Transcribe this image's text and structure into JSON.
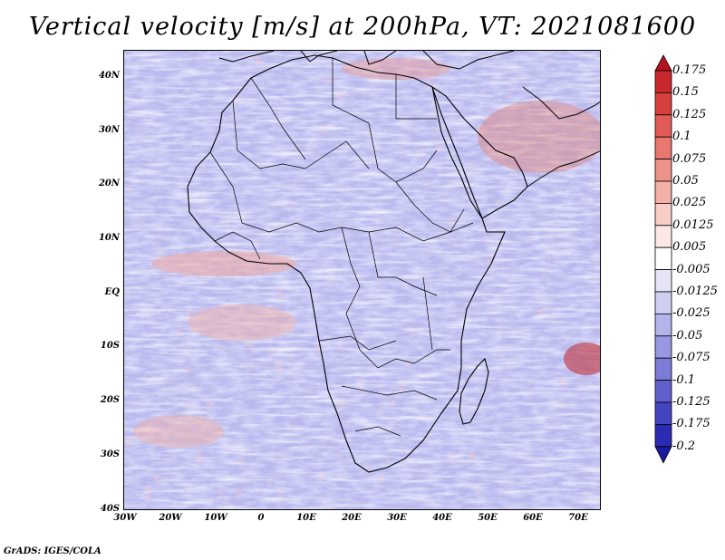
{
  "title": "Vertical velocity [m/s] at 200hPa, VT: 2021081600",
  "credit": "GrADS: IGES/COLA",
  "lat_labels": [
    "40N",
    "30N",
    "20N",
    "10N",
    "EQ",
    "10S",
    "20S",
    "30S",
    "40S"
  ],
  "lon_labels": [
    "30W",
    "20W",
    "10W",
    "0",
    "10E",
    "20E",
    "30E",
    "40E",
    "50E",
    "60E",
    "70E"
  ],
  "colorbar": {
    "labels": [
      "0.175",
      "0.15",
      "0.125",
      "0.1",
      "0.075",
      "0.05",
      "0.025",
      "0.0125",
      "0.005",
      "-0.005",
      "-0.0125",
      "-0.025",
      "-0.05",
      "-0.075",
      "-0.1",
      "-0.125",
      "-0.175",
      "-0.2"
    ],
    "colors": [
      "#b4141e",
      "#c8282d",
      "#d7413c",
      "#e15a55",
      "#e8776f",
      "#ee938a",
      "#f3b0a7",
      "#f8cec8",
      "#fce8e4",
      "#ffffff",
      "#e5e5f7",
      "#cfcff1",
      "#b4b4ea",
      "#9898e1",
      "#7c7cd7",
      "#6060cc",
      "#4444c0",
      "#2a2ab2",
      "#1a1aa0"
    ]
  },
  "map": {
    "region": "Africa",
    "field": "Vertical velocity",
    "level": "200hPa",
    "valid_time": "2021081600"
  }
}
